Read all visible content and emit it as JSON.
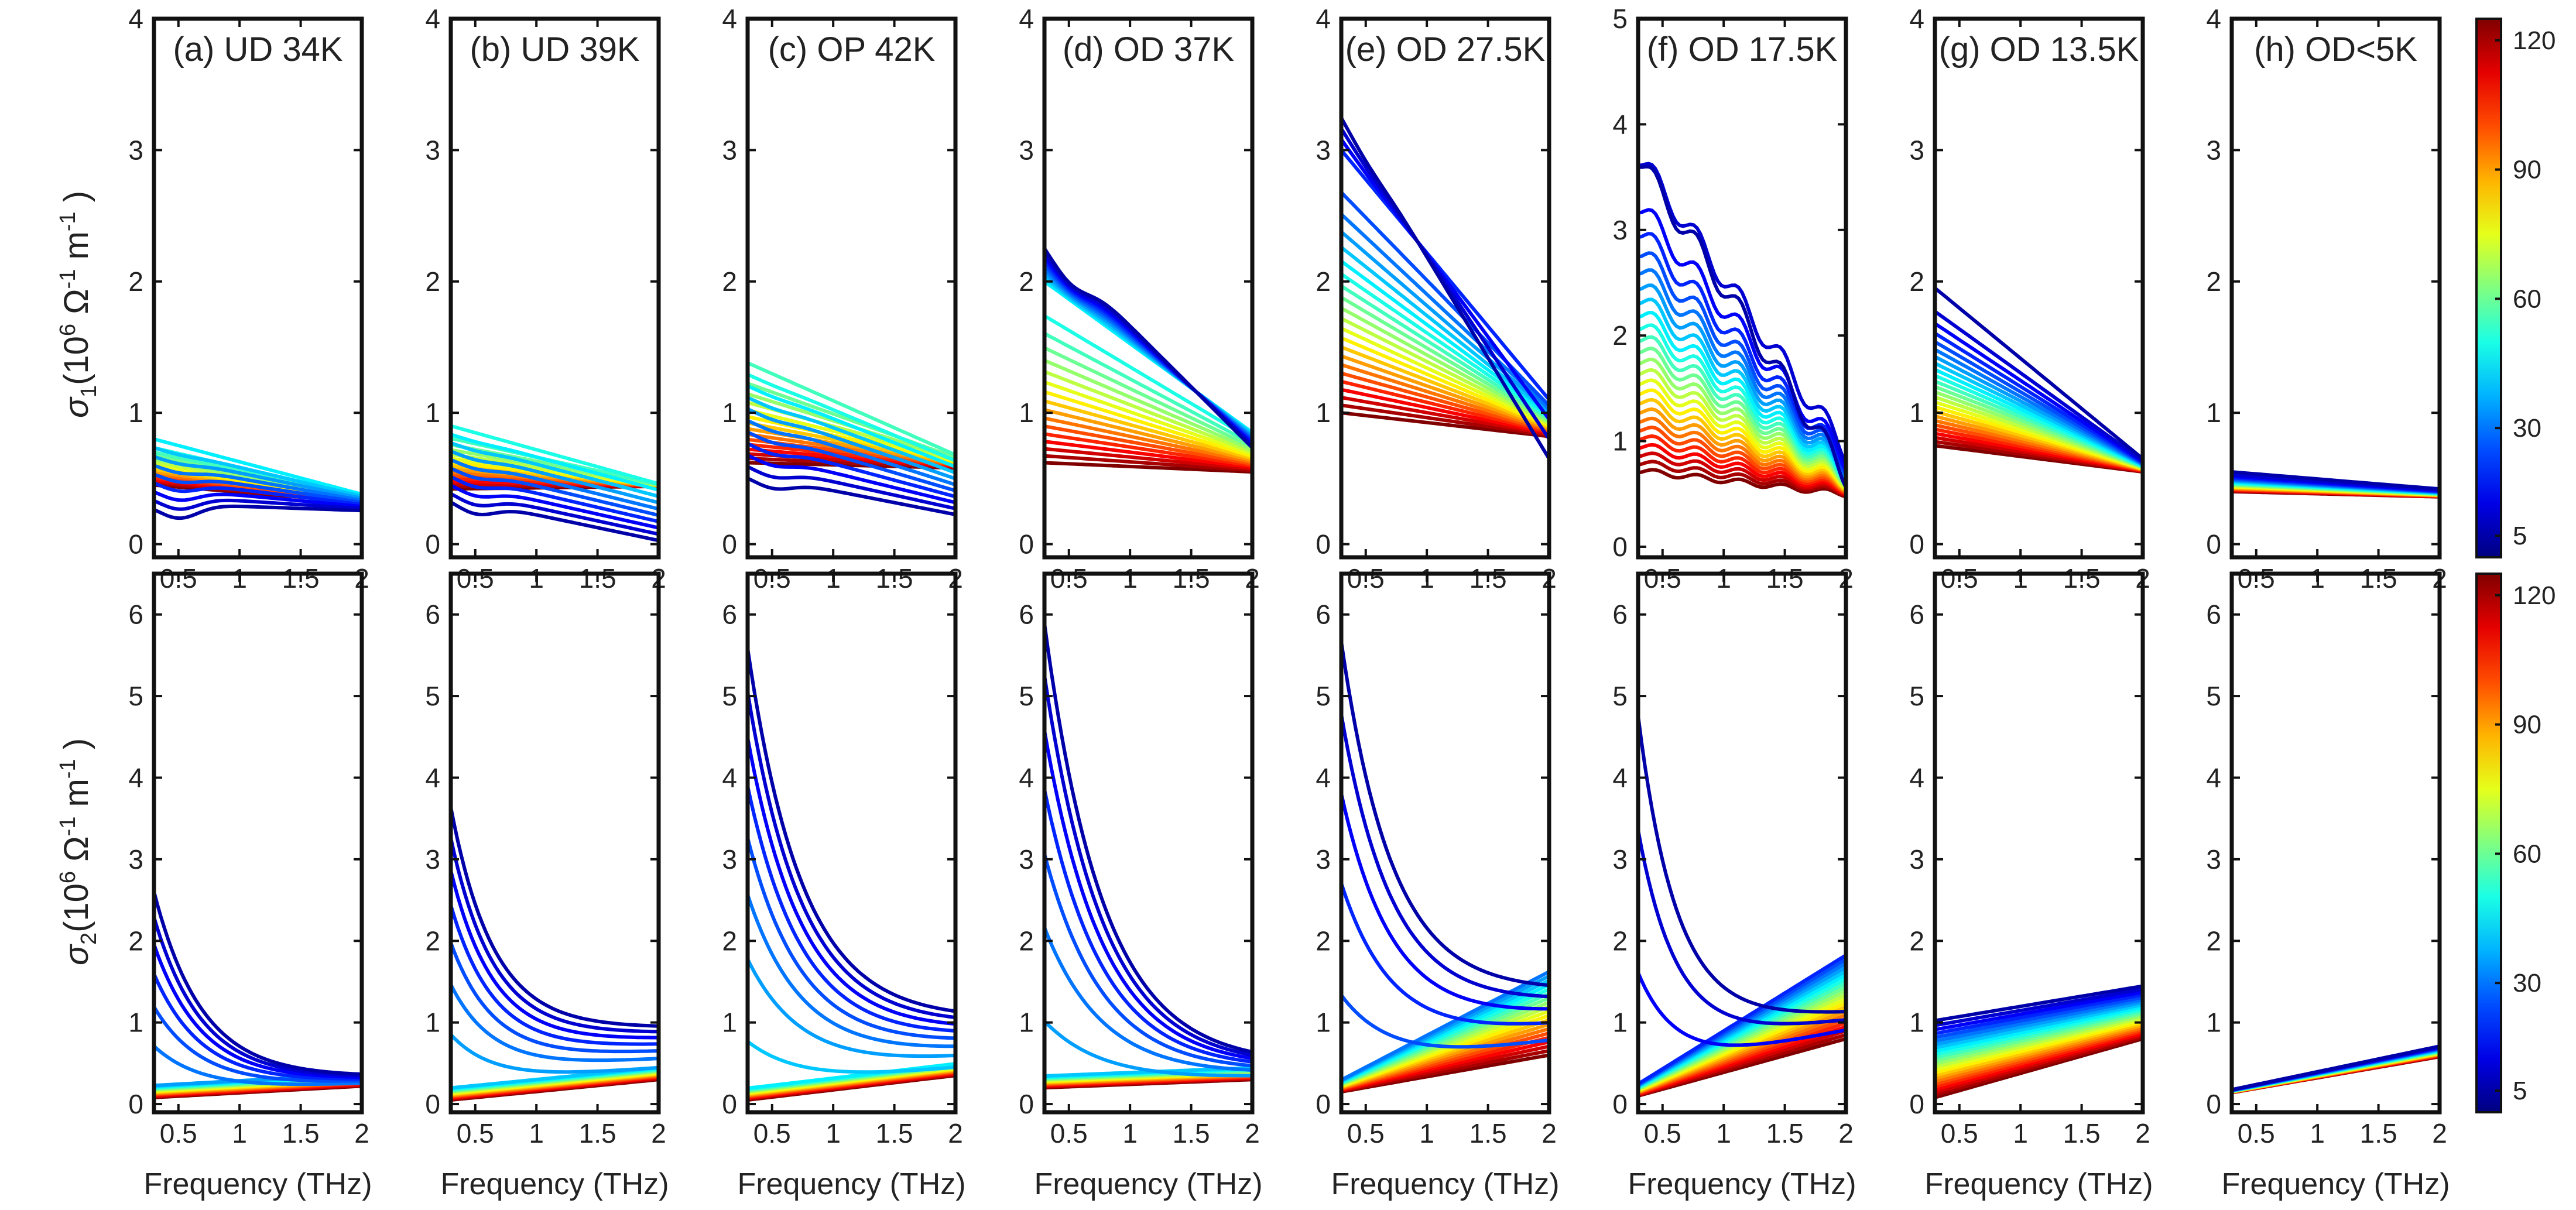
{
  "figure": {
    "row_y_labels": [
      {
        "symbol": "σ",
        "subscript": "1",
        "unit_prefix": "(10",
        "exp6": "6",
        "omega": " Ω",
        "exp1": "-1",
        "m": " m",
        "exp2": "-1",
        "close": " )"
      },
      {
        "symbol": "σ",
        "subscript": "2",
        "unit_prefix": "(10",
        "exp6": "6",
        "omega": " Ω",
        "exp1": "-1",
        "m": " m",
        "exp2": "-1",
        "close": " )"
      }
    ],
    "colorbar": {
      "ticks": [
        "5",
        "30",
        "60",
        "90",
        "120"
      ],
      "range": [
        0,
        125
      ],
      "tick_values": [
        5,
        30,
        60,
        90,
        120
      ],
      "colormap": "jet"
    }
  },
  "chart_data": [
    {
      "type": "line",
      "panel": "a",
      "row": 1,
      "title": "(a) UD 34K",
      "xlabel": "Frequency (THz)",
      "ylabel": "σ1 (10^6 Ω^-1 m^-1)",
      "xlim": [
        0.3,
        2
      ],
      "ylim": [
        -0.1,
        4
      ],
      "xticks": [
        "0.5",
        "1",
        "1.5",
        "2"
      ],
      "yticks": [
        "0",
        "1",
        "2",
        "3",
        "4"
      ],
      "model": {
        "type": "sigma1",
        "Tc": 34,
        "high_start": 0.45,
        "high_end": 0.32,
        "low_start": 0.25,
        "low_end": 0.24,
        "max_start": 0.8,
        "max_end": 0.38,
        "Tpeak": 45,
        "dip": 0.12
      }
    },
    {
      "type": "line",
      "panel": "b",
      "row": 1,
      "title": "(b) UD 39K",
      "xlabel": "Frequency (THz)",
      "ylabel": "",
      "xlim": [
        0.3,
        2
      ],
      "ylim": [
        -0.1,
        4
      ],
      "xticks": [
        "0.5",
        "1",
        "1.5",
        "2"
      ],
      "yticks": [
        "0",
        "1",
        "2",
        "3",
        "4"
      ],
      "model": {
        "type": "sigma1",
        "Tc": 39,
        "high_start": 0.42,
        "high_end": 0.44,
        "low_start": 0.3,
        "low_end": -0.02,
        "max_start": 0.9,
        "max_end": 0.46,
        "Tpeak": 50,
        "dip": 0.1
      }
    },
    {
      "type": "line",
      "panel": "c",
      "row": 1,
      "title": "(c) OP 42K",
      "xlabel": "Frequency (THz)",
      "ylabel": "",
      "xlim": [
        0.3,
        2
      ],
      "ylim": [
        -0.1,
        4
      ],
      "xticks": [
        "0.5",
        "1",
        "1.5",
        "2"
      ],
      "yticks": [
        "0",
        "1",
        "2",
        "3",
        "4"
      ],
      "model": {
        "type": "sigma1",
        "Tc": 42,
        "high_start": 0.62,
        "high_end": 0.58,
        "low_start": 0.45,
        "low_end": 0.18,
        "max_start": 1.38,
        "max_end": 0.68,
        "Tpeak": 55,
        "dip": 0.08
      }
    },
    {
      "type": "line",
      "panel": "d",
      "row": 1,
      "title": "(d) OD 37K",
      "xlabel": "Frequency (THz)",
      "ylabel": "",
      "xlim": [
        0.3,
        2
      ],
      "ylim": [
        -0.1,
        4
      ],
      "xticks": [
        "0.5",
        "1",
        "1.5",
        "2"
      ],
      "yticks": [
        "0",
        "1",
        "2",
        "3",
        "4"
      ],
      "model": {
        "type": "sigma1",
        "Tc": 37,
        "high_start": 0.62,
        "high_end": 0.55,
        "low_start": 2.35,
        "low_end": 0.72,
        "max_start": 2.0,
        "max_end": 0.85,
        "Tpeak": 45,
        "dip": 0.15
      }
    },
    {
      "type": "line",
      "panel": "e",
      "row": 1,
      "title": "(e) OD 27.5K",
      "xlabel": "Frequency (THz)",
      "ylabel": "",
      "xlim": [
        0.3,
        2
      ],
      "ylim": [
        -0.1,
        4
      ],
      "xticks": [
        "0.5",
        "1",
        "1.5",
        "2"
      ],
      "yticks": [
        "0",
        "1",
        "2",
        "3",
        "4"
      ],
      "model": {
        "type": "sigma1",
        "Tc": 27.5,
        "high_start": 1.0,
        "high_end": 0.82,
        "low_start": 3.35,
        "low_end": 0.5,
        "max_start": 3.0,
        "max_end": 1.1,
        "Tpeak": 20,
        "dip": 0.05
      }
    },
    {
      "type": "line",
      "panel": "f",
      "row": 1,
      "title": "(f) OD 17.5K",
      "xlabel": "Frequency (THz)",
      "ylabel": "",
      "xlim": [
        0.3,
        2
      ],
      "ylim": [
        -0.1,
        5
      ],
      "xticks": [
        "0.5",
        "1",
        "1.5",
        "2"
      ],
      "yticks": [
        "0",
        "1",
        "2",
        "3",
        "4",
        "5"
      ],
      "model": {
        "type": "sigma1",
        "Tc": 17.5,
        "high_start": 0.72,
        "high_end": 0.5,
        "low_start": 3.7,
        "low_end": 0.45,
        "max_start": 3.7,
        "max_end": 0.9,
        "Tpeak": 10,
        "dip": 0.05,
        "wobble": 0.12
      }
    },
    {
      "type": "line",
      "panel": "g",
      "row": 1,
      "title": "(g) OD 13.5K",
      "xlabel": "Frequency (THz)",
      "ylabel": "",
      "xlim": [
        0.3,
        2
      ],
      "ylim": [
        -0.1,
        4
      ],
      "xticks": [
        "0.5",
        "1",
        "1.5",
        "2"
      ],
      "yticks": [
        "0",
        "1",
        "2",
        "3",
        "4"
      ],
      "model": {
        "type": "sigma1",
        "Tc": 13.5,
        "high_start": 0.75,
        "high_end": 0.55,
        "low_start": 1.85,
        "low_end": 0.42,
        "max_start": 1.95,
        "max_end": 0.65,
        "Tpeak": 5,
        "dip": 0.05
      }
    },
    {
      "type": "line",
      "panel": "h",
      "row": 1,
      "title": "(h) OD<5K",
      "xlabel": "Frequency (THz)",
      "ylabel": "",
      "xlim": [
        0.3,
        2
      ],
      "ylim": [
        -0.1,
        4
      ],
      "xticks": [
        "0.5",
        "1",
        "1.5",
        "2"
      ],
      "yticks": [
        "0",
        "1",
        "2",
        "3",
        "4"
      ],
      "model": {
        "type": "sigma1",
        "Tc": 4,
        "high_start": 0.4,
        "high_end": 0.36,
        "low_start": 0.55,
        "low_end": 0.42,
        "max_start": 0.55,
        "max_end": 0.42,
        "Tpeak": 5,
        "dip": 0.0
      }
    },
    {
      "type": "line",
      "panel": "a2",
      "row": 2,
      "title": "",
      "xlabel": "Frequency (THz)",
      "ylabel": "σ2 (10^6 Ω^-1 m^-1)",
      "xlim": [
        0.3,
        2
      ],
      "ylim": [
        -0.1,
        6.5
      ],
      "xticks": [
        "0.5",
        "1",
        "1.5",
        "2"
      ],
      "yticks": [
        "0",
        "1",
        "2",
        "3",
        "4",
        "5",
        "6"
      ],
      "model": {
        "type": "sigma2",
        "Tc": 34,
        "sc_max": 2.9,
        "sc_end": 0.35,
        "n_start": 0.08,
        "n_end": 0.22,
        "decay": 1.6
      }
    },
    {
      "type": "line",
      "panel": "b2",
      "row": 2,
      "title": "",
      "xlabel": "Frequency (THz)",
      "ylabel": "",
      "xlim": [
        0.3,
        2
      ],
      "ylim": [
        -0.1,
        6.5
      ],
      "xticks": [
        "0.5",
        "1",
        "1.5",
        "2"
      ],
      "yticks": [
        "0",
        "1",
        "2",
        "3",
        "4",
        "5",
        "6"
      ],
      "model": {
        "type": "sigma2",
        "Tc": 39,
        "sc_max": 4.0,
        "sc_end": 1.0,
        "n_start": 0.05,
        "n_end": 0.3,
        "decay": 1.8
      }
    },
    {
      "type": "line",
      "panel": "c2",
      "row": 2,
      "title": "",
      "xlabel": "Frequency (THz)",
      "ylabel": "",
      "xlim": [
        0.3,
        2
      ],
      "ylim": [
        -0.1,
        6.5
      ],
      "xticks": [
        "0.5",
        "1",
        "1.5",
        "2"
      ],
      "yticks": [
        "0",
        "1",
        "2",
        "3",
        "4",
        "5",
        "6"
      ],
      "model": {
        "type": "sigma2",
        "Tc": 42,
        "sc_max": 6.1,
        "sc_end": 1.1,
        "n_start": 0.05,
        "n_end": 0.35,
        "decay": 1.4
      }
    },
    {
      "type": "line",
      "panel": "d2",
      "row": 2,
      "title": "",
      "xlabel": "Frequency (THz)",
      "ylabel": "",
      "xlim": [
        0.3,
        2
      ],
      "ylim": [
        -0.1,
        6.5
      ],
      "xticks": [
        "0.5",
        "1",
        "1.5",
        "2"
      ],
      "yticks": [
        "0",
        "1",
        "2",
        "3",
        "4",
        "5",
        "6"
      ],
      "model": {
        "type": "sigma2",
        "Tc": 37,
        "sc_max": 6.5,
        "sc_end": 0.5,
        "n_start": 0.2,
        "n_end": 0.3,
        "decay": 1.3
      }
    },
    {
      "type": "line",
      "panel": "e2",
      "row": 2,
      "title": "",
      "xlabel": "Frequency (THz)",
      "ylabel": "",
      "xlim": [
        0.3,
        2
      ],
      "ylim": [
        -0.1,
        6.5
      ],
      "xticks": [
        "0.5",
        "1",
        "1.5",
        "2"
      ],
      "yticks": [
        "0",
        "1",
        "2",
        "3",
        "4",
        "5",
        "6"
      ],
      "model": {
        "type": "sigma2",
        "Tc": 27.5,
        "sc_max": 6.5,
        "sc_end": 1.5,
        "n_start": 0.15,
        "n_end": 0.6,
        "decay": 1.5,
        "rising": true
      }
    },
    {
      "type": "line",
      "panel": "f2",
      "row": 2,
      "title": "",
      "xlabel": "Frequency (THz)",
      "ylabel": "",
      "xlim": [
        0.3,
        2
      ],
      "ylim": [
        -0.1,
        6.5
      ],
      "xticks": [
        "0.5",
        "1",
        "1.5",
        "2"
      ],
      "yticks": [
        "0",
        "1",
        "2",
        "3",
        "4",
        "5",
        "6"
      ],
      "model": {
        "type": "sigma2",
        "Tc": 17.5,
        "sc_max": 6.0,
        "sc_end": 1.2,
        "n_start": 0.1,
        "n_end": 0.8,
        "decay": 2.0,
        "rising": true
      }
    },
    {
      "type": "line",
      "panel": "g2",
      "row": 2,
      "title": "",
      "xlabel": "Frequency (THz)",
      "ylabel": "",
      "xlim": [
        0.3,
        2
      ],
      "ylim": [
        -0.1,
        6.5
      ],
      "xticks": [
        "0.5",
        "1",
        "1.5",
        "2"
      ],
      "yticks": [
        "0",
        "1",
        "2",
        "3",
        "4",
        "5",
        "6"
      ],
      "model": {
        "type": "sigma2_flat",
        "Tc": 13.5,
        "sc_start": 1.1,
        "sc_end": 1.5,
        "n_start": 0.08,
        "n_end": 0.8
      }
    },
    {
      "type": "line",
      "panel": "h2",
      "row": 2,
      "title": "",
      "xlabel": "Frequency (THz)",
      "ylabel": "",
      "xlim": [
        0.3,
        2
      ],
      "ylim": [
        -0.1,
        6.5
      ],
      "xticks": [
        "0.5",
        "1",
        "1.5",
        "2"
      ],
      "yticks": [
        "0",
        "1",
        "2",
        "3",
        "4",
        "5",
        "6"
      ],
      "model": {
        "type": "sigma2_flat",
        "Tc": 4,
        "sc_start": 0.18,
        "sc_end": 0.72,
        "n_start": 0.14,
        "n_end": 0.58
      }
    }
  ]
}
